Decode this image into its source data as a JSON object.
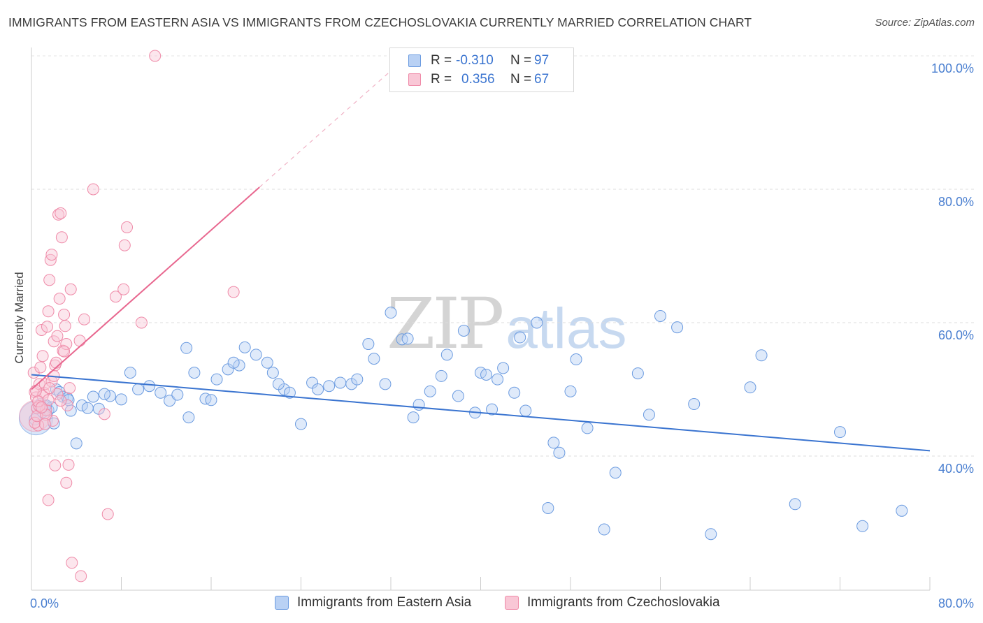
{
  "header": {
    "title": "IMMIGRANTS FROM EASTERN ASIA VS IMMIGRANTS FROM CZECHOSLOVAKIA CURRENTLY MARRIED CORRELATION CHART",
    "source": "Source: ZipAtlas.com"
  },
  "watermark": {
    "zip": "ZIP",
    "atlas": "atlas"
  },
  "legend": {
    "rows": [
      {
        "r_label": "R =",
        "r_value": "-0.310",
        "n_label": "N =",
        "n_value": "97",
        "color": "#6b9be0",
        "fill": "#b9d1f4"
      },
      {
        "r_label": "R =",
        "r_value": "0.356",
        "n_label": "N =",
        "n_value": "67",
        "color": "#ef8aa8",
        "fill": "#f9c7d6"
      }
    ]
  },
  "bottom_legend": {
    "items": [
      {
        "label": "Immigrants from Eastern Asia"
      },
      {
        "label": "Immigrants from Czechoslovakia"
      }
    ]
  },
  "chart_data": {
    "type": "scatter",
    "title": "IMMIGRANTS FROM EASTERN ASIA VS IMMIGRANTS FROM CZECHOSLOVAKIA CURRENTLY MARRIED CORRELATION CHART",
    "xlabel": "",
    "ylabel": "Currently Married",
    "xlim": [
      0,
      80
    ],
    "ylim": [
      20,
      102
    ],
    "x_tick_labels": [
      "0.0%",
      "80.0%"
    ],
    "y_tick_labels": [
      "40.0%",
      "60.0%",
      "80.0%",
      "100.0%"
    ],
    "y_ticks": [
      40,
      60,
      80,
      100
    ],
    "grid": "horizontal dashed",
    "colors": {
      "blue": "#3a74d0",
      "blue_fill": "#b9d1f4",
      "pink": "#e8678f",
      "pink_fill": "#f9c7d6"
    },
    "series": [
      {
        "name": "Immigrants from Eastern Asia",
        "trend": {
          "x": [
            0,
            80
          ],
          "y": [
            52.2,
            40.8
          ]
        },
        "points": [
          [
            0.3,
            45.5
          ],
          [
            0.5,
            47.2
          ],
          [
            0.8,
            47.8
          ],
          [
            1.0,
            46.6
          ],
          [
            1.2,
            47.5
          ],
          [
            1.5,
            46.9
          ],
          [
            1.8,
            47.3
          ],
          [
            2.2,
            50.0
          ],
          [
            2.5,
            49.6
          ],
          [
            2.8,
            48.9
          ],
          [
            3.2,
            48.7
          ],
          [
            3.5,
            46.8
          ],
          [
            4.0,
            41.9
          ],
          [
            4.5,
            47.6
          ],
          [
            5.0,
            47.2
          ],
          [
            5.5,
            48.9
          ],
          [
            6.0,
            47.1
          ],
          [
            7.0,
            49.0
          ],
          [
            8.0,
            48.5
          ],
          [
            8.8,
            52.5
          ],
          [
            9.5,
            50.0
          ],
          [
            10.5,
            50.5
          ],
          [
            11.5,
            49.5
          ],
          [
            12.3,
            48.3
          ],
          [
            13.0,
            49.2
          ],
          [
            14.0,
            45.8
          ],
          [
            14.5,
            52.5
          ],
          [
            15.5,
            48.6
          ],
          [
            16.5,
            51.5
          ],
          [
            17.5,
            53.0
          ],
          [
            18.5,
            53.6
          ],
          [
            19.0,
            56.3
          ],
          [
            20.0,
            55.2
          ],
          [
            21.0,
            54.0
          ],
          [
            21.5,
            52.5
          ],
          [
            22.5,
            50.0
          ],
          [
            23.0,
            49.5
          ],
          [
            24.0,
            44.8
          ],
          [
            25.0,
            51.0
          ],
          [
            25.5,
            50.0
          ],
          [
            26.5,
            50.5
          ],
          [
            27.5,
            51.0
          ],
          [
            28.5,
            50.8
          ],
          [
            29.0,
            51.5
          ],
          [
            30.0,
            56.8
          ],
          [
            30.5,
            54.6
          ],
          [
            31.5,
            50.8
          ],
          [
            32.0,
            61.5
          ],
          [
            33.0,
            57.5
          ],
          [
            33.5,
            57.6
          ],
          [
            34.0,
            45.8
          ],
          [
            34.5,
            47.7
          ],
          [
            35.5,
            49.7
          ],
          [
            36.5,
            52.0
          ],
          [
            37.0,
            55.2
          ],
          [
            38.0,
            49.0
          ],
          [
            38.5,
            58.8
          ],
          [
            39.5,
            46.5
          ],
          [
            40.0,
            52.5
          ],
          [
            40.5,
            52.2
          ],
          [
            41.0,
            47.0
          ],
          [
            41.5,
            51.5
          ],
          [
            42.0,
            53.2
          ],
          [
            43.0,
            49.5
          ],
          [
            43.5,
            57.8
          ],
          [
            44.0,
            46.8
          ],
          [
            45.0,
            60.0
          ],
          [
            46.0,
            32.2
          ],
          [
            46.5,
            42.0
          ],
          [
            47.0,
            40.5
          ],
          [
            48.0,
            49.7
          ],
          [
            48.5,
            54.5
          ],
          [
            49.5,
            44.2
          ],
          [
            51.0,
            29.0
          ],
          [
            52.0,
            37.5
          ],
          [
            54.0,
            52.4
          ],
          [
            55.0,
            46.2
          ],
          [
            56.0,
            61.0
          ],
          [
            57.5,
            59.3
          ],
          [
            59.0,
            47.8
          ],
          [
            60.5,
            28.3
          ],
          [
            64.0,
            50.3
          ],
          [
            65.0,
            55.1
          ],
          [
            68.0,
            32.8
          ],
          [
            72.0,
            43.6
          ],
          [
            74.0,
            29.5
          ],
          [
            77.5,
            31.8
          ],
          [
            18.0,
            54.0
          ],
          [
            22.0,
            50.8
          ],
          [
            13.8,
            56.2
          ],
          [
            16.0,
            48.4
          ],
          [
            3.3,
            48.4
          ],
          [
            2.0,
            44.9
          ],
          [
            6.5,
            49.3
          ],
          [
            1.3,
            47.6
          ],
          [
            0.9,
            47.2
          ]
        ],
        "big_point": [
          0.4,
          45.7
        ]
      },
      {
        "name": "Immigrants from Czechoslovakia",
        "trend": {
          "x": [
            0,
            20.3
          ],
          "y": [
            50.0,
            80.3
          ],
          "dashed_to": {
            "x": [
              20.3,
              32.5
            ],
            "y": [
              80.3,
              98.5
            ]
          }
        },
        "points": [
          [
            0.2,
            52.5
          ],
          [
            0.3,
            49.6
          ],
          [
            0.4,
            48.8
          ],
          [
            0.5,
            47.2
          ],
          [
            0.6,
            44.6
          ],
          [
            0.7,
            50.8
          ],
          [
            0.8,
            53.3
          ],
          [
            0.9,
            58.9
          ],
          [
            1.0,
            55.0
          ],
          [
            1.1,
            49.5
          ],
          [
            1.2,
            50.8
          ],
          [
            1.3,
            46.9
          ],
          [
            1.4,
            59.4
          ],
          [
            1.5,
            61.7
          ],
          [
            1.6,
            66.4
          ],
          [
            1.7,
            69.4
          ],
          [
            1.8,
            70.2
          ],
          [
            1.9,
            45.3
          ],
          [
            2.0,
            57.2
          ],
          [
            2.1,
            53.6
          ],
          [
            2.2,
            54.0
          ],
          [
            2.3,
            58.0
          ],
          [
            2.4,
            76.2
          ],
          [
            2.5,
            63.6
          ],
          [
            2.6,
            76.4
          ],
          [
            2.7,
            72.8
          ],
          [
            2.8,
            55.8
          ],
          [
            2.9,
            61.2
          ],
          [
            3.0,
            59.5
          ],
          [
            3.1,
            56.8
          ],
          [
            3.2,
            47.6
          ],
          [
            3.3,
            38.7
          ],
          [
            3.4,
            50.2
          ],
          [
            3.5,
            65.0
          ],
          [
            4.3,
            57.3
          ],
          [
            4.7,
            60.5
          ],
          [
            5.5,
            80.0
          ],
          [
            6.5,
            46.3
          ],
          [
            6.8,
            31.3
          ],
          [
            7.5,
            63.9
          ],
          [
            8.2,
            65.0
          ],
          [
            8.3,
            71.6
          ],
          [
            8.5,
            74.3
          ],
          [
            9.8,
            60.0
          ],
          [
            11.0,
            100.0
          ],
          [
            18.0,
            64.6
          ],
          [
            1.5,
            33.4
          ],
          [
            2.1,
            38.6
          ],
          [
            3.1,
            36.0
          ],
          [
            4.4,
            22.0
          ],
          [
            3.6,
            24.0
          ],
          [
            0.3,
            45.0
          ],
          [
            0.5,
            46.0
          ],
          [
            1.0,
            49.0
          ],
          [
            1.8,
            51.2
          ],
          [
            2.3,
            49.3
          ],
          [
            0.4,
            49.8
          ],
          [
            0.7,
            47.5
          ],
          [
            1.3,
            46.2
          ],
          [
            2.6,
            48.3
          ],
          [
            0.6,
            48.2
          ],
          [
            1.5,
            48.4
          ],
          [
            2.9,
            55.7
          ],
          [
            1.2,
            44.8
          ],
          [
            0.9,
            47.3
          ],
          [
            1.6,
            50.2
          ],
          [
            2.0,
            52.0
          ]
        ],
        "big_point": [
          0.3,
          46.0
        ]
      }
    ]
  }
}
